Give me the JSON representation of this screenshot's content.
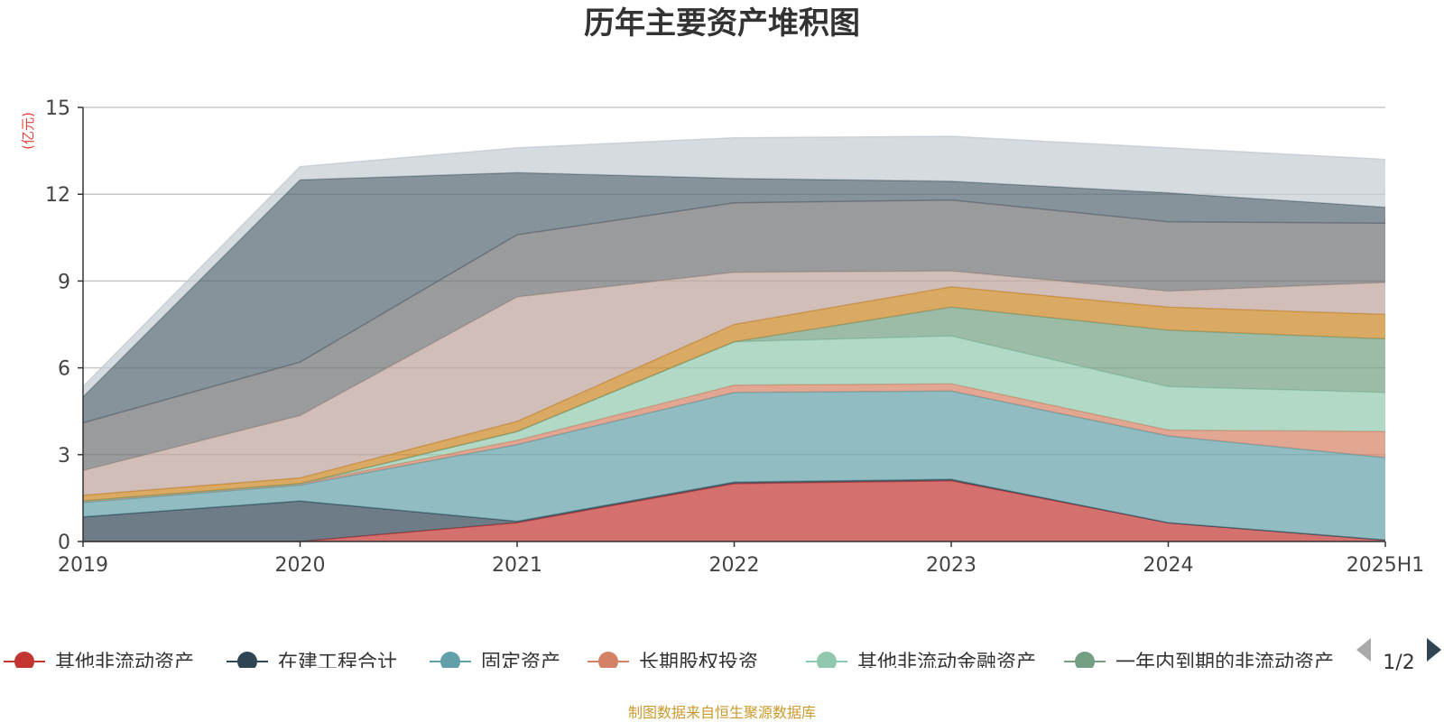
{
  "chart_data": {
    "type": "area",
    "title": "历年主要资产堆积图",
    "ylabel": "(亿元)",
    "xlabel": "",
    "categories": [
      "2019",
      "2020",
      "2021",
      "2022",
      "2023",
      "2024",
      "2025H1"
    ],
    "ylim": [
      0,
      15
    ],
    "yticks": [
      0,
      3,
      6,
      9,
      12,
      15
    ],
    "grid": true,
    "stacked": true,
    "legend_position": "bottom",
    "series": [
      {
        "name": "其他非流动资产",
        "color": "#c23531",
        "values": [
          0.0,
          0.0,
          0.65,
          2.0,
          2.1,
          0.65,
          0.05
        ]
      },
      {
        "name": "在建工程合计",
        "color": "#2f4554",
        "values": [
          0.85,
          1.4,
          0.05,
          0.05,
          0.05,
          0.0,
          0.0
        ]
      },
      {
        "name": "固定资产",
        "color": "#61a0a8",
        "values": [
          0.5,
          0.55,
          2.65,
          3.1,
          3.05,
          3.0,
          2.85
        ]
      },
      {
        "name": "长期股权投资",
        "color": "#d48265",
        "values": [
          0.05,
          0.05,
          0.15,
          0.25,
          0.25,
          0.2,
          0.9
        ]
      },
      {
        "name": "其他非流动金融资产",
        "color": "#91c7ae",
        "values": [
          0.0,
          0.0,
          0.3,
          1.5,
          1.65,
          1.5,
          1.35
        ]
      },
      {
        "name": "一年内到期的非流动资产",
        "color": "#749f83",
        "values": [
          0.0,
          0.0,
          0.0,
          0.0,
          1.0,
          1.95,
          1.85
        ]
      },
      {
        "name": "",
        "color": "#ca8622",
        "values": [
          0.2,
          0.2,
          0.35,
          0.6,
          0.7,
          0.8,
          0.85
        ]
      },
      {
        "name": "",
        "color": "#bda29a",
        "values": [
          0.85,
          2.15,
          4.3,
          1.8,
          0.55,
          0.55,
          1.1
        ]
      },
      {
        "name": "",
        "color": "#6e7074",
        "values": [
          1.65,
          1.85,
          2.15,
          2.4,
          2.45,
          2.4,
          2.05
        ]
      },
      {
        "name": "",
        "color": "#546570",
        "values": [
          0.9,
          6.3,
          2.15,
          0.85,
          0.65,
          1.0,
          0.55
        ]
      },
      {
        "name": "",
        "color": "#c4ccd3",
        "values": [
          0.35,
          0.45,
          0.85,
          1.4,
          1.55,
          1.55,
          1.65
        ]
      }
    ]
  },
  "legend": {
    "page": "1/2"
  },
  "source": "制图数据来自恒生聚源数据库"
}
